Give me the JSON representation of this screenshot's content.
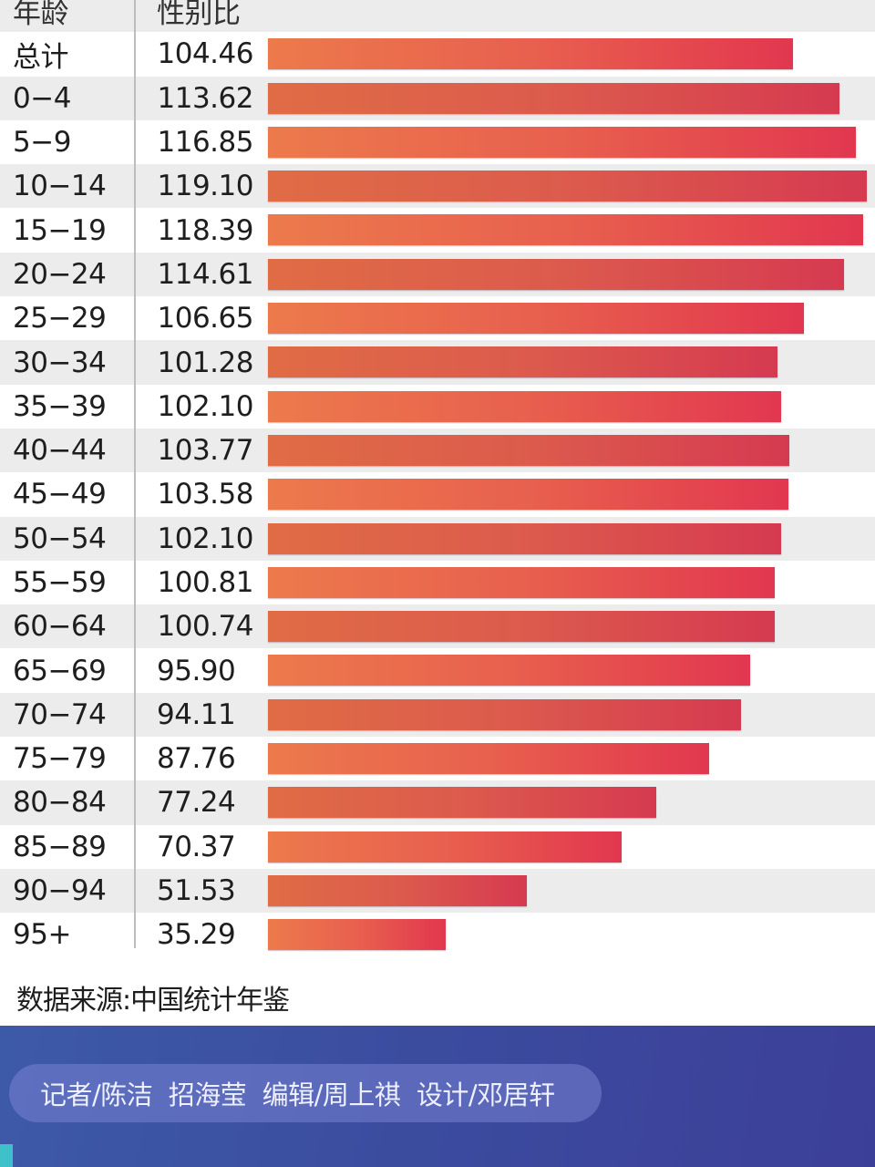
{
  "header": {
    "age_label": "年龄",
    "ratio_label": "性别比"
  },
  "rows": [
    {
      "age": "总计",
      "value": "104.46"
    },
    {
      "age": "0−4",
      "value": "113.62"
    },
    {
      "age": "5−9",
      "value": "116.85"
    },
    {
      "age": "10−14",
      "value": "119.10"
    },
    {
      "age": "15−19",
      "value": "118.39"
    },
    {
      "age": "20−24",
      "value": "114.61"
    },
    {
      "age": "25−29",
      "value": "106.65"
    },
    {
      "age": "30−34",
      "value": "101.28"
    },
    {
      "age": "35−39",
      "value": "102.10"
    },
    {
      "age": "40−44",
      "value": "103.77"
    },
    {
      "age": "45−49",
      "value": "103.58"
    },
    {
      "age": "50−54",
      "value": "102.10"
    },
    {
      "age": "55−59",
      "value": "100.81"
    },
    {
      "age": "60−64",
      "value": "100.74"
    },
    {
      "age": "65−69",
      "value": "95.90"
    },
    {
      "age": "70−74",
      "value": "94.11"
    },
    {
      "age": "75−79",
      "value": "87.76"
    },
    {
      "age": "80−84",
      "value": "77.24"
    },
    {
      "age": "85−89",
      "value": "70.37"
    },
    {
      "age": "90−94",
      "value": "51.53"
    },
    {
      "age": "95+",
      "value": "35.29"
    }
  ],
  "source": "数据来源:中国统计年鉴",
  "credits": "记者/陈洁  招海莹  编辑/周上祺  设计/邓居轩",
  "colors": {
    "bar_start": "#ec7a4c",
    "bar_end": "#e2374f",
    "row_alt": "#ececec",
    "footer_blue": "#3d4ba0",
    "accent_teal": "#3fc1c9"
  },
  "chart_data": {
    "type": "bar",
    "orientation": "horizontal",
    "title": "",
    "xlabel": "性别比",
    "ylabel": "年龄",
    "categories": [
      "总计",
      "0-4",
      "5-9",
      "10-14",
      "15-19",
      "20-24",
      "25-29",
      "30-34",
      "35-39",
      "40-44",
      "45-49",
      "50-54",
      "55-59",
      "60-64",
      "65-69",
      "70-74",
      "75-79",
      "80-84",
      "85-89",
      "90-94",
      "95+"
    ],
    "values": [
      104.46,
      113.62,
      116.85,
      119.1,
      118.39,
      114.61,
      106.65,
      101.28,
      102.1,
      103.77,
      103.58,
      102.1,
      100.81,
      100.74,
      95.9,
      94.11,
      87.76,
      77.24,
      70.37,
      51.53,
      35.29
    ],
    "xlim": [
      0,
      119.1
    ],
    "grid": false,
    "legend": null,
    "annotations": [
      "数据来源:中国统计年鉴"
    ]
  }
}
